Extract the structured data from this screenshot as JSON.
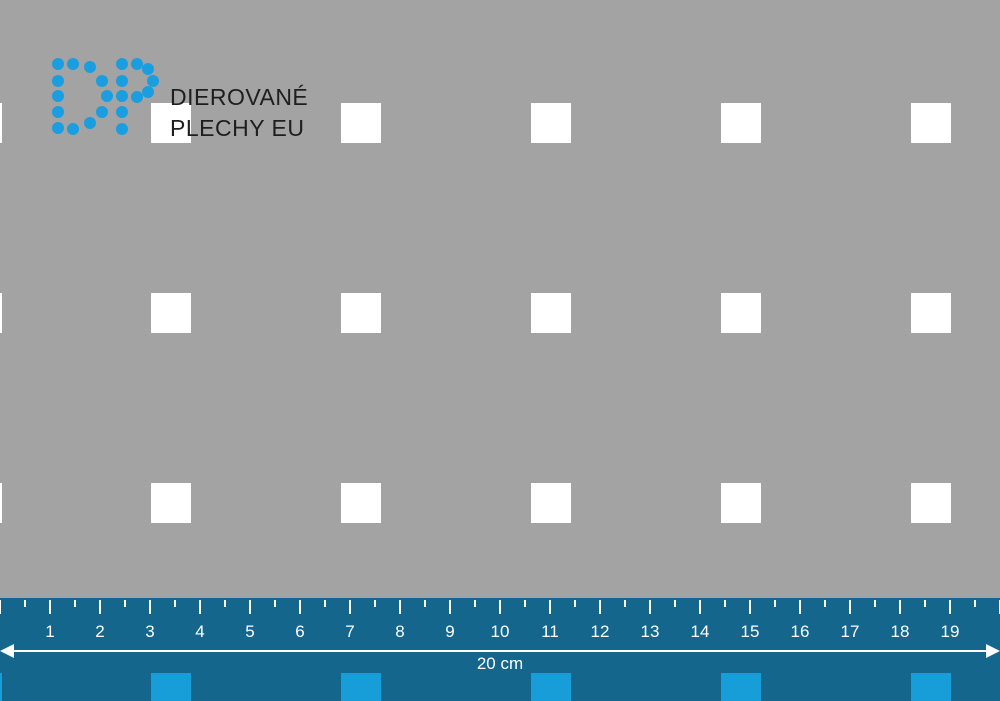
{
  "logo": {
    "line1": "DIEROVANÉ",
    "line2": "PLECHY EU",
    "color": "#1a9ee0"
  },
  "ruler": {
    "numbers": [
      "1",
      "2",
      "3",
      "4",
      "5",
      "6",
      "7",
      "8",
      "9",
      "10",
      "11",
      "12",
      "13",
      "14",
      "15",
      "16",
      "17",
      "18",
      "19"
    ],
    "width_label": "20 cm",
    "color": "#15668c"
  },
  "colors": {
    "sheet": "#a3a3a3",
    "hole": "#ffffff",
    "band_hole": "#179ed9"
  }
}
